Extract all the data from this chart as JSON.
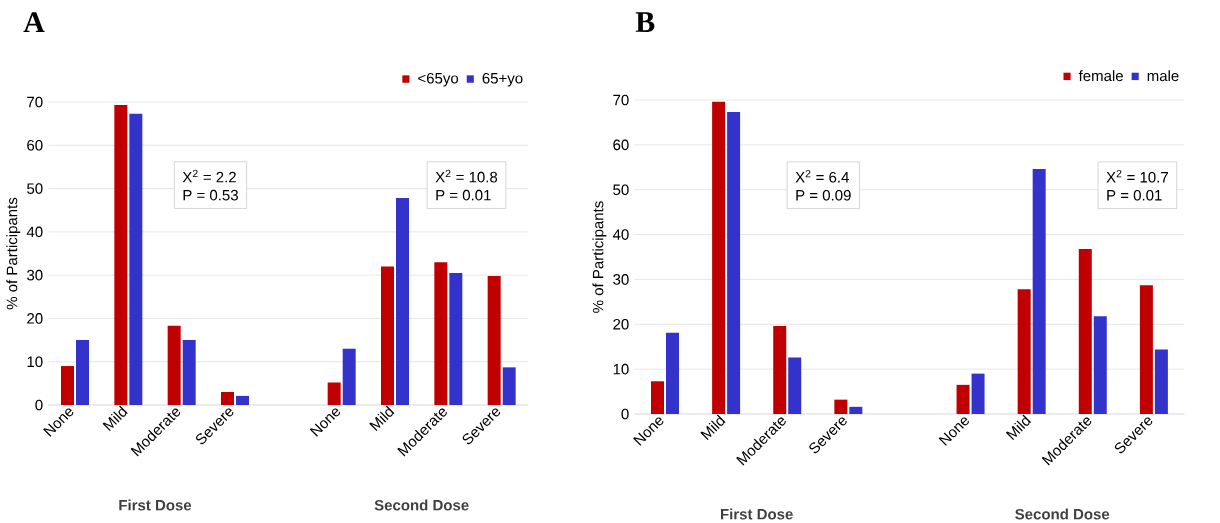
{
  "chart_data": [
    {
      "type": "bar",
      "title": "A",
      "ylabel": "% of Participants",
      "categories": [
        "None",
        "Mild",
        "Moderate",
        "Severe",
        null,
        "None",
        "Mild",
        "Moderate",
        "Severe"
      ],
      "series": [
        {
          "name": "<65yo",
          "color": "#c00000",
          "values": [
            9,
            69.3,
            18.3,
            3,
            null,
            5.2,
            32,
            33,
            29.8
          ]
        },
        {
          "name": "65+yo",
          "color": "#3333cc",
          "values": [
            15,
            67.3,
            15,
            2.1,
            null,
            13,
            47.8,
            30.5,
            8.7
          ]
        }
      ],
      "ylim": [
        0,
        70
      ],
      "yticks": [
        0,
        10,
        20,
        30,
        40,
        50,
        60,
        70
      ],
      "grid": "y",
      "legend": "top right",
      "annotations": [
        "X$^{2}$ = 2.2",
        "P = 0.53",
        "X$^{2}$ = 10.8",
        "P = 0.01",
        "First Dose",
        "Second Dose"
      ]
    },
    {
      "type": "bar",
      "title": "B",
      "ylabel": "% of Participants",
      "categories": [
        "None",
        "Mild",
        "Moderate",
        "Severe",
        null,
        "None",
        "Mild",
        "Moderate",
        "Severe"
      ],
      "series": [
        {
          "name": "female",
          "color": "#c00000",
          "values": [
            7.3,
            69.6,
            19.6,
            3.2,
            null,
            6.5,
            27.8,
            36.8,
            28.7
          ]
        },
        {
          "name": "male",
          "color": "#3333cc",
          "values": [
            18.1,
            67.3,
            12.6,
            1.6,
            null,
            9,
            54.6,
            21.8,
            14.4
          ]
        }
      ],
      "ylim": [
        0,
        70
      ],
      "yticks": [
        0,
        10,
        20,
        30,
        40,
        50,
        60,
        70
      ],
      "grid": "y",
      "legend": "top right",
      "annotations": [
        "X$^{2}$ = 6.4",
        "P = 0.09",
        "X$^{2}$ = 10.7",
        "P = 0.01",
        "First Dose",
        "Second Dose"
      ]
    }
  ]
}
